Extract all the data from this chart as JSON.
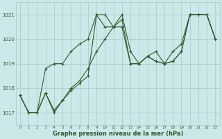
{
  "title": "Graphe pression niveau de la mer (hPa)",
  "bg_color": "#cce8e8",
  "grid_color": "#aacece",
  "line_color": "#2d5a2d",
  "xlim": [
    -0.5,
    23.5
  ],
  "ylim": [
    1016.5,
    1021.5
  ],
  "yticks": [
    1017,
    1018,
    1019,
    1020,
    1021
  ],
  "xticks": [
    0,
    1,
    2,
    3,
    4,
    5,
    6,
    7,
    8,
    9,
    10,
    11,
    12,
    13,
    14,
    15,
    16,
    17,
    18,
    19,
    20,
    21,
    22,
    23
  ],
  "series": [
    [
      1017.7,
      1017.0,
      1017.0,
      1017.8,
      1017.1,
      1017.5,
      1017.9,
      1018.2,
      1018.5,
      1021.0,
      1021.0,
      1020.5,
      1020.8,
      1019.0,
      1019.0,
      1019.3,
      1019.1,
      1019.0,
      1019.1,
      1019.5,
      1021.0,
      1021.0,
      1021.0,
      1020.0
    ],
    [
      1017.7,
      1017.0,
      1017.0,
      1018.8,
      1019.0,
      1019.0,
      1019.5,
      1019.8,
      1020.0,
      1021.0,
      1020.5,
      1020.5,
      1021.0,
      1019.5,
      1019.0,
      1019.3,
      1019.5,
      1019.0,
      1019.5,
      1019.8,
      1021.0,
      1021.0,
      1021.0,
      1020.0
    ],
    [
      1017.7,
      1017.0,
      1017.0,
      1017.8,
      1017.0,
      1017.5,
      1018.0,
      1018.3,
      1018.8,
      1019.5,
      1020.0,
      1020.5,
      1020.5,
      1019.0,
      1019.0,
      1019.3,
      1019.1,
      1019.0,
      1019.1,
      1019.5,
      1021.0,
      1021.0,
      1021.0,
      1020.0
    ]
  ]
}
